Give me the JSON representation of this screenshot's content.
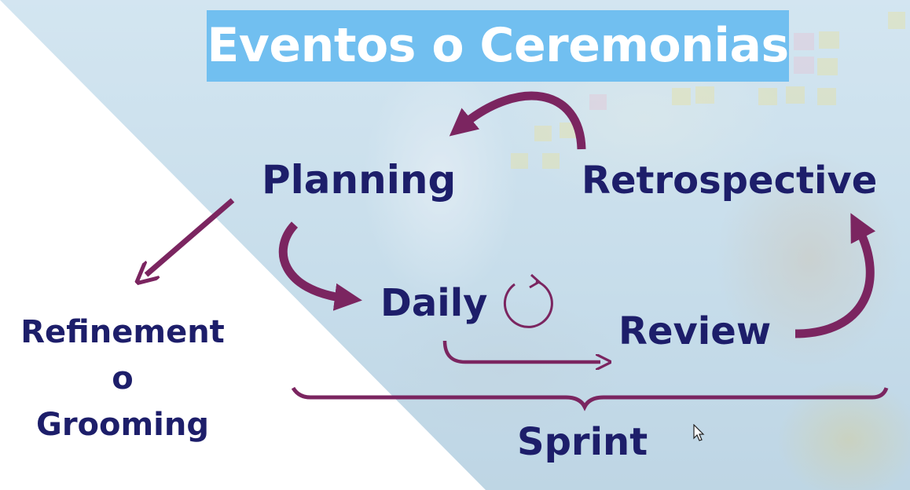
{
  "title": "Eventos o Ceremonias",
  "events": {
    "planning": "Planning",
    "retrospective": "Retrospective",
    "daily": "Daily",
    "review": "Review"
  },
  "refinement": {
    "line1": "Refinement",
    "line2": "o",
    "line3": "Grooming"
  },
  "sprint": "Sprint",
  "colors": {
    "title_box": "#71bff0",
    "title_text": "#ffffff",
    "label_text": "#1d1e6a",
    "arrow": "#7b2560"
  }
}
